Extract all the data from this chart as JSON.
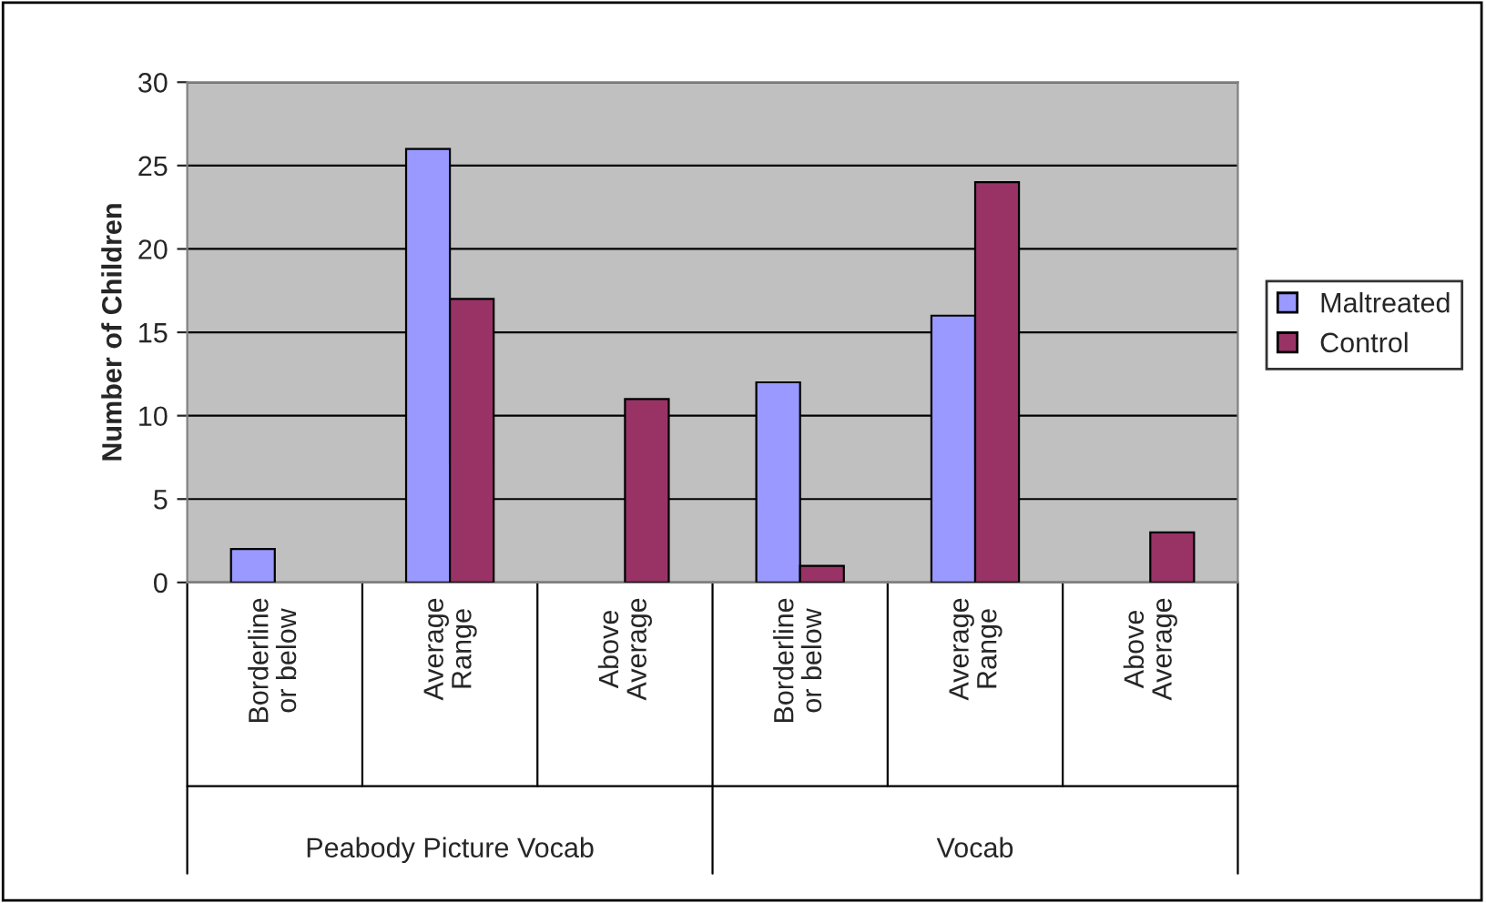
{
  "chart_data": {
    "type": "bar",
    "categories": [
      "Borderline\nor below",
      "Average\nRange",
      "Above\nAverage",
      "Borderline\nor below",
      "Average\nRange",
      "Above\nAverage"
    ],
    "series": [
      {
        "name": "Maltreated",
        "color": "#9999ff",
        "values": [
          2,
          26,
          0,
          12,
          16,
          0
        ]
      },
      {
        "name": "Control",
        "color": "#993366",
        "values": [
          0,
          17,
          11,
          1,
          24,
          3
        ]
      }
    ],
    "ylabel": "Number of Children",
    "annotations": [
      "Peabody Picture Vocab",
      "Vocab"
    ],
    "ylim": [
      0,
      30
    ],
    "yticks": [
      0,
      5,
      10,
      15,
      20,
      25,
      30
    ],
    "grid": "y",
    "legend": "right"
  }
}
